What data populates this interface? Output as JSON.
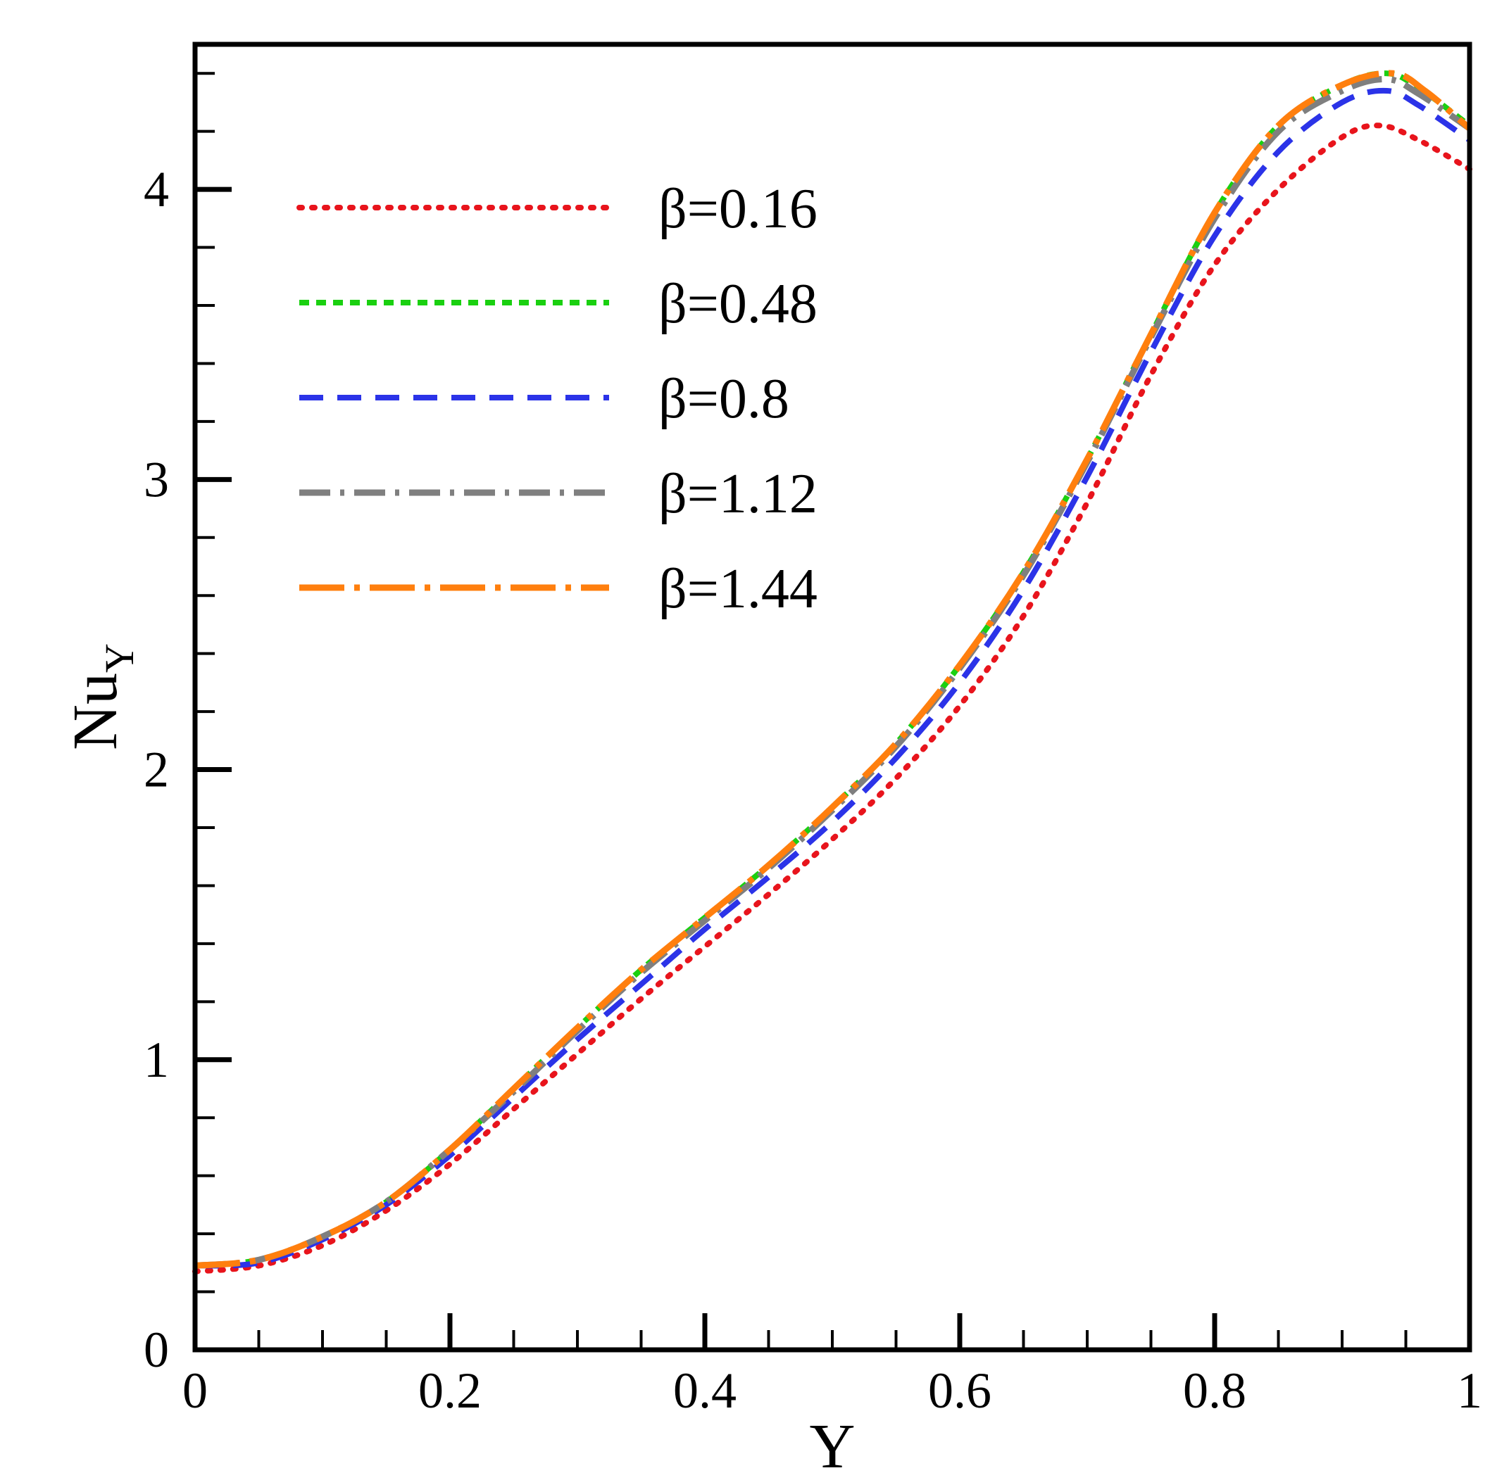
{
  "chart_data": {
    "type": "line",
    "title": "",
    "xlabel": "Y",
    "ylabel_main": "Nu",
    "ylabel_sub": "Y",
    "xlim": [
      0,
      1
    ],
    "ylim": [
      0,
      4.5
    ],
    "grid": false,
    "legend_position": "top-left",
    "x_major_ticks": [
      0,
      0.2,
      0.4,
      0.6,
      0.8,
      1
    ],
    "x_tick_labels": [
      "0",
      "0.2",
      "0.4",
      "0.6",
      "0.8",
      "1"
    ],
    "y_major_ticks": [
      0,
      1,
      2,
      3,
      4
    ],
    "y_tick_labels": [
      "0",
      "1",
      "2",
      "3",
      "4"
    ],
    "x_minor_step": 0.05,
    "y_minor_step": 0.2,
    "series": [
      {
        "name": "β=0.16",
        "color": "#e8141c",
        "dash": "dotted",
        "points": [
          [
            0,
            0.27
          ],
          [
            0.05,
            0.29
          ],
          [
            0.1,
            0.36
          ],
          [
            0.15,
            0.48
          ],
          [
            0.2,
            0.64
          ],
          [
            0.25,
            0.83
          ],
          [
            0.3,
            1.02
          ],
          [
            0.35,
            1.21
          ],
          [
            0.4,
            1.39
          ],
          [
            0.45,
            1.57
          ],
          [
            0.5,
            1.76
          ],
          [
            0.55,
            1.97
          ],
          [
            0.6,
            2.22
          ],
          [
            0.65,
            2.53
          ],
          [
            0.7,
            2.92
          ],
          [
            0.75,
            3.36
          ],
          [
            0.8,
            3.74
          ],
          [
            0.85,
            4.0
          ],
          [
            0.9,
            4.18
          ],
          [
            0.93,
            4.22
          ],
          [
            0.96,
            4.17
          ],
          [
            1,
            4.07
          ]
        ]
      },
      {
        "name": "β=0.48",
        "color": "#1ad010",
        "dash": "short-dash",
        "points": [
          [
            0,
            0.29
          ],
          [
            0.05,
            0.31
          ],
          [
            0.1,
            0.39
          ],
          [
            0.15,
            0.51
          ],
          [
            0.2,
            0.69
          ],
          [
            0.25,
            0.9
          ],
          [
            0.3,
            1.11
          ],
          [
            0.35,
            1.31
          ],
          [
            0.4,
            1.49
          ],
          [
            0.45,
            1.67
          ],
          [
            0.5,
            1.87
          ],
          [
            0.55,
            2.09
          ],
          [
            0.6,
            2.36
          ],
          [
            0.65,
            2.68
          ],
          [
            0.7,
            3.07
          ],
          [
            0.75,
            3.5
          ],
          [
            0.8,
            3.92
          ],
          [
            0.85,
            4.22
          ],
          [
            0.9,
            4.36
          ],
          [
            0.935,
            4.4
          ],
          [
            0.96,
            4.35
          ],
          [
            1,
            4.22
          ]
        ]
      },
      {
        "name": "β=0.8",
        "color": "#2b33e8",
        "dash": "dashed",
        "points": [
          [
            0,
            0.29
          ],
          [
            0.05,
            0.3
          ],
          [
            0.1,
            0.38
          ],
          [
            0.15,
            0.5
          ],
          [
            0.2,
            0.67
          ],
          [
            0.25,
            0.87
          ],
          [
            0.3,
            1.07
          ],
          [
            0.35,
            1.26
          ],
          [
            0.4,
            1.45
          ],
          [
            0.45,
            1.63
          ],
          [
            0.5,
            1.82
          ],
          [
            0.55,
            2.04
          ],
          [
            0.6,
            2.3
          ],
          [
            0.65,
            2.62
          ],
          [
            0.7,
            3.01
          ],
          [
            0.75,
            3.44
          ],
          [
            0.8,
            3.84
          ],
          [
            0.85,
            4.13
          ],
          [
            0.9,
            4.3
          ],
          [
            0.935,
            4.34
          ],
          [
            0.96,
            4.29
          ],
          [
            1,
            4.17
          ]
        ]
      },
      {
        "name": "β=1.12",
        "color": "#7f7f7f",
        "dash": "dash-dot",
        "points": [
          [
            0,
            0.29
          ],
          [
            0.05,
            0.31
          ],
          [
            0.1,
            0.39
          ],
          [
            0.15,
            0.51
          ],
          [
            0.2,
            0.69
          ],
          [
            0.25,
            0.89
          ],
          [
            0.3,
            1.1
          ],
          [
            0.35,
            1.3
          ],
          [
            0.4,
            1.48
          ],
          [
            0.45,
            1.66
          ],
          [
            0.5,
            1.86
          ],
          [
            0.55,
            2.08
          ],
          [
            0.6,
            2.35
          ],
          [
            0.65,
            2.67
          ],
          [
            0.7,
            3.06
          ],
          [
            0.75,
            3.49
          ],
          [
            0.8,
            3.9
          ],
          [
            0.85,
            4.2
          ],
          [
            0.9,
            4.34
          ],
          [
            0.935,
            4.38
          ],
          [
            0.96,
            4.33
          ],
          [
            1,
            4.21
          ]
        ]
      },
      {
        "name": "β=1.44",
        "color": "#ff7f0e",
        "dash": "long-dash-dot",
        "points": [
          [
            0,
            0.29
          ],
          [
            0.05,
            0.31
          ],
          [
            0.1,
            0.39
          ],
          [
            0.15,
            0.51
          ],
          [
            0.2,
            0.69
          ],
          [
            0.25,
            0.9
          ],
          [
            0.3,
            1.11
          ],
          [
            0.35,
            1.31
          ],
          [
            0.4,
            1.49
          ],
          [
            0.45,
            1.67
          ],
          [
            0.5,
            1.87
          ],
          [
            0.55,
            2.09
          ],
          [
            0.6,
            2.36
          ],
          [
            0.65,
            2.68
          ],
          [
            0.7,
            3.07
          ],
          [
            0.75,
            3.5
          ],
          [
            0.8,
            3.92
          ],
          [
            0.85,
            4.22
          ],
          [
            0.9,
            4.36
          ],
          [
            0.94,
            4.4
          ],
          [
            0.965,
            4.34
          ],
          [
            1,
            4.21
          ]
        ]
      }
    ]
  }
}
